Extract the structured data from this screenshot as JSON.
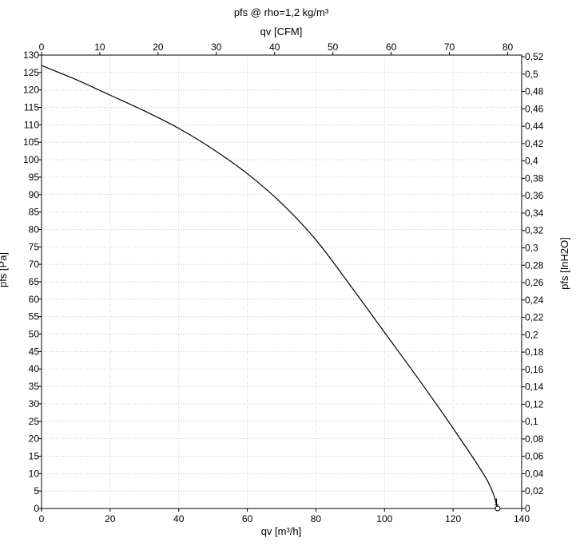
{
  "chart_data": {
    "type": "line",
    "title": "pfs @ rho=1,2 kg/m³",
    "xlabel": "qv [m³/h]",
    "ylabel": "pfs [Pa]",
    "x2label": "qv [CFM]",
    "y2label": "pfs [InH2O]",
    "xlim": [
      0,
      140
    ],
    "ylim": [
      0,
      130
    ],
    "x2lim": [
      0,
      82.4
    ],
    "y2lim": [
      0,
      0.5219
    ],
    "xticks": [
      "0",
      "20",
      "40",
      "60",
      "80",
      "100",
      "120",
      "140"
    ],
    "yticks": [
      "0",
      "5",
      "10",
      "15",
      "20",
      "25",
      "30",
      "35",
      "40",
      "45",
      "50",
      "55",
      "60",
      "65",
      "70",
      "75",
      "80",
      "85",
      "90",
      "95",
      "100",
      "105",
      "110",
      "115",
      "120",
      "125",
      "130"
    ],
    "x2ticks": [
      "0",
      "10",
      "20",
      "30",
      "40",
      "50",
      "60",
      "70",
      "80"
    ],
    "y2ticks": [
      "0",
      "0,02",
      "0,04",
      "0,06",
      "0,08",
      "0,1",
      "0,12",
      "0,14",
      "0,16",
      "0,18",
      "0,2",
      "0,22",
      "0,24",
      "0,26",
      "0,28",
      "0,3",
      "0,32",
      "0,34",
      "0,36",
      "0,38",
      "0,4",
      "0,42",
      "0,44",
      "0,46",
      "0,48",
      "0,5",
      "0,52"
    ],
    "grid": true,
    "series": [
      {
        "color": "#000000",
        "x": [
          0,
          10,
          20,
          30,
          40,
          50,
          60,
          70,
          80,
          90,
          100,
          110,
          120,
          130,
          133
        ],
        "y": [
          127,
          123,
          118.5,
          114,
          109,
          103,
          96,
          87.5,
          77,
          64,
          50.5,
          37,
          23,
          8,
          0
        ]
      }
    ],
    "annotations": [
      {
        "text": "1",
        "x": 133,
        "y": 0
      }
    ]
  }
}
